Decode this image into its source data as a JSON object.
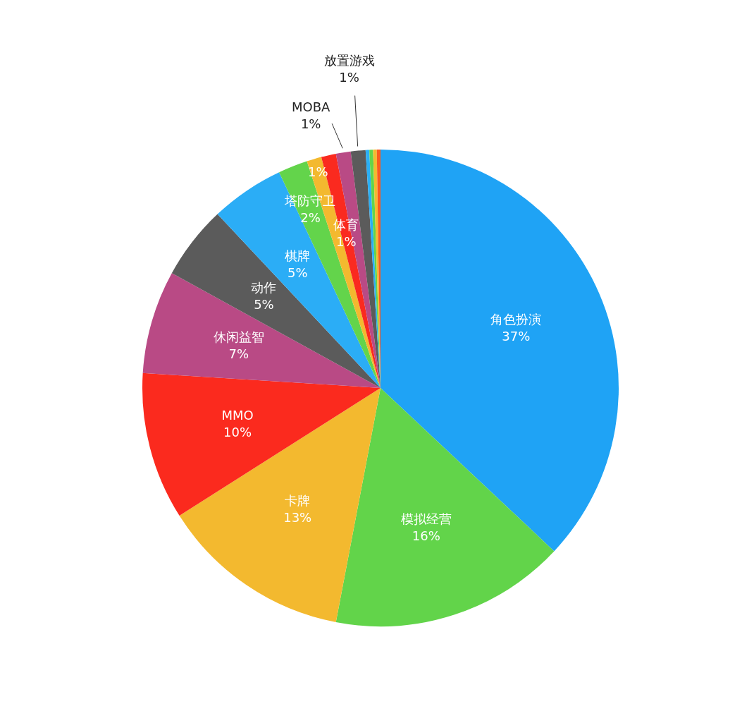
{
  "chart_data": {
    "type": "pie",
    "categories": [
      "角色扮演",
      "模拟经营",
      "卡牌",
      "MMO",
      "休闲益智",
      "动作",
      "棋牌",
      "塔防守卫",
      null,
      "体育",
      "MOBA",
      "放置游戏",
      null,
      null,
      null,
      null
    ],
    "values": [
      37,
      16,
      13,
      10,
      7,
      5,
      5,
      2,
      1,
      1,
      1,
      1,
      0.25,
      0.25,
      0.25,
      0.25
    ],
    "value_labels": [
      "37%",
      "16%",
      "13%",
      "10%",
      "7%",
      "5%",
      "5%",
      "2%",
      "1%",
      "1%",
      "1%",
      "1%",
      null,
      null,
      null,
      null
    ],
    "colors": [
      "#1fa3f5",
      "#62d44a",
      "#f3b92f",
      "#fb2a1e",
      "#b94a85",
      "#5b5b5b",
      "#2badf6",
      "#63d44b",
      "#f3b92f",
      "#fa2a1f",
      "#b94a85",
      "#5b5b5b",
      "#2aaff5",
      "#63d44b",
      "#f3b92f",
      "#fb5a1e"
    ],
    "legend": false
  }
}
